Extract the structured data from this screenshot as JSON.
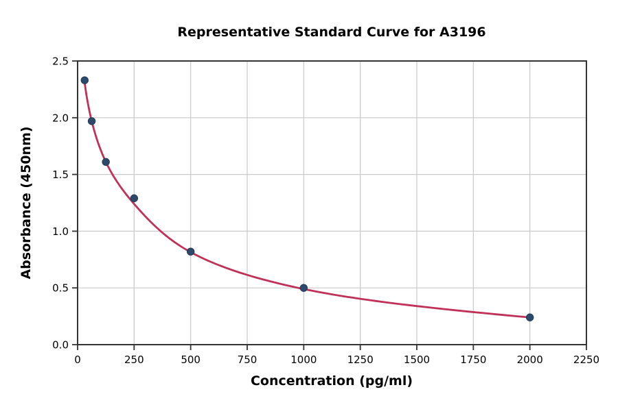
{
  "chart_data": {
    "type": "scatter",
    "title": "Representative Standard Curve for A3196",
    "xlabel": "Concentration (pg/ml)",
    "ylabel": "Absorbance (450nm)",
    "x": [
      31.25,
      62.5,
      125,
      250,
      500,
      1000,
      2000
    ],
    "y": [
      2.33,
      1.97,
      1.61,
      1.29,
      0.82,
      0.5,
      0.24
    ],
    "fit_curve": {
      "note": "4PL fitted curve drawn from first to last standard",
      "x": [
        31.25,
        62.5,
        125,
        250,
        500,
        1000,
        2000
      ],
      "y": [
        2.31,
        1.97,
        1.61,
        1.24,
        0.815,
        0.49,
        0.24
      ]
    },
    "xlim": [
      0,
      2250
    ],
    "ylim": [
      0,
      2.5
    ],
    "x_ticks": [
      0,
      250,
      500,
      750,
      1000,
      1250,
      1500,
      1750,
      2000,
      2250
    ],
    "y_ticks": [
      0.0,
      0.5,
      1.0,
      1.5,
      2.0,
      2.5
    ],
    "grid": true,
    "legend_position": "none",
    "colors": {
      "marker": "#2e4a6b",
      "marker_edge": "#223a57",
      "line": "#c13058",
      "grid": "#c9c9c9",
      "spine": "#333333",
      "text": "#000000",
      "background": "#ffffff"
    }
  }
}
